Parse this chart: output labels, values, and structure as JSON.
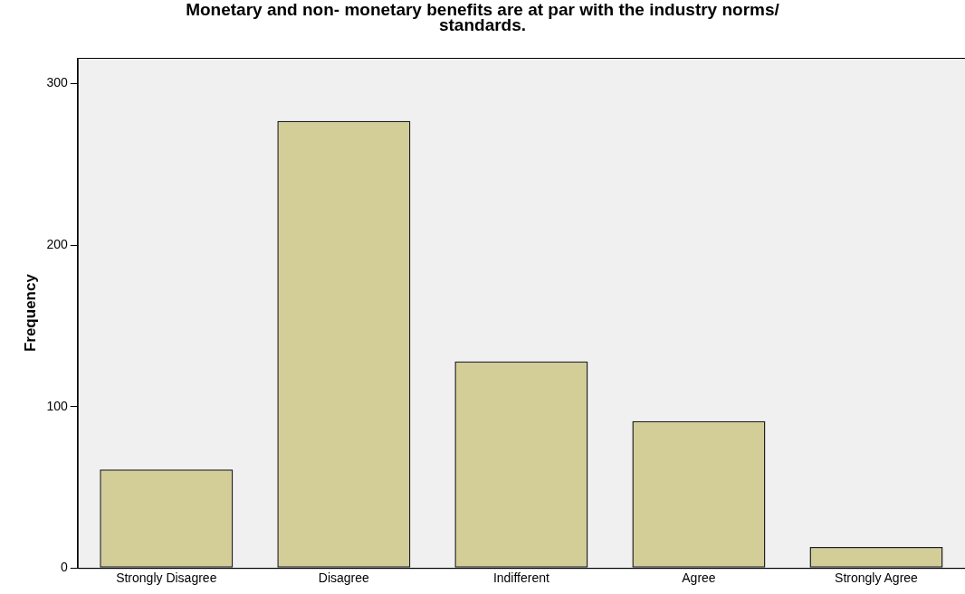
{
  "chart_data": {
    "type": "bar",
    "title": "Monetary and non- monetary benefits are at par with the industry norms/ standards.",
    "ylabel": "Frequency",
    "categories": [
      "Strongly Disagree",
      "Disagree",
      "Indifferent",
      "Agree",
      "Strongly Agree"
    ],
    "values": [
      61,
      277,
      128,
      91,
      13
    ],
    "color": "#d3ce97",
    "ylim": [
      0,
      316
    ],
    "yticks": [
      0,
      100,
      200,
      300
    ],
    "grid": false,
    "legend": false
  }
}
